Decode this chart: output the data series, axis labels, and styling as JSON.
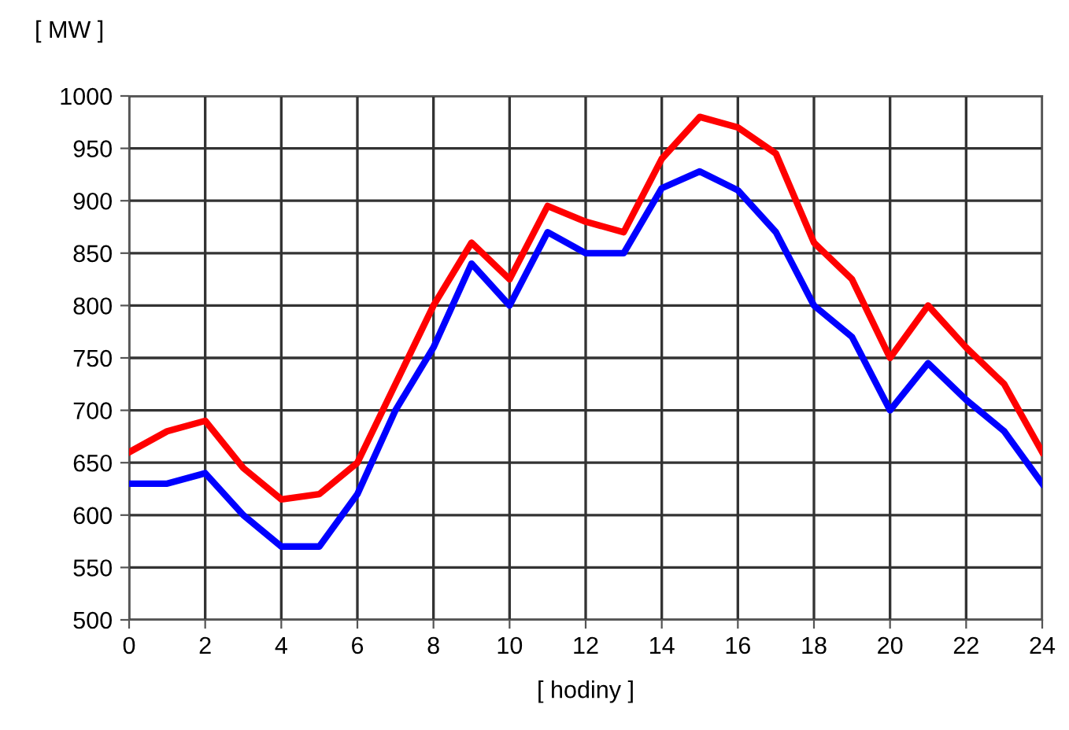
{
  "chart_data": {
    "type": "line",
    "ylabel": "[ MW ]",
    "xlabel": "[ hodiny ]",
    "x": [
      0,
      1,
      2,
      3,
      4,
      5,
      6,
      7,
      8,
      9,
      10,
      11,
      12,
      13,
      14,
      15,
      16,
      17,
      18,
      19,
      20,
      21,
      22,
      23,
      24
    ],
    "series": [
      {
        "color": "#ff0000",
        "values": [
          660,
          680,
          690,
          645,
          615,
          620,
          650,
          725,
          800,
          860,
          825,
          895,
          880,
          870,
          940,
          980,
          970,
          945,
          860,
          825,
          750,
          800,
          760,
          725,
          660
        ]
      },
      {
        "color": "#0000ff",
        "values": [
          630,
          630,
          640,
          600,
          570,
          570,
          620,
          700,
          760,
          840,
          800,
          870,
          850,
          850,
          912,
          928,
          910,
          870,
          800,
          770,
          700,
          745,
          710,
          680,
          630
        ]
      }
    ],
    "xlim": [
      0,
      24
    ],
    "xticks": [
      0,
      2,
      4,
      6,
      8,
      10,
      12,
      14,
      16,
      18,
      20,
      22,
      24
    ],
    "ylim": [
      500,
      1000
    ],
    "yticks": [
      500,
      550,
      600,
      650,
      700,
      750,
      800,
      850,
      900,
      950,
      1000
    ],
    "grid": true,
    "marker": "none",
    "line_style": "solid"
  }
}
